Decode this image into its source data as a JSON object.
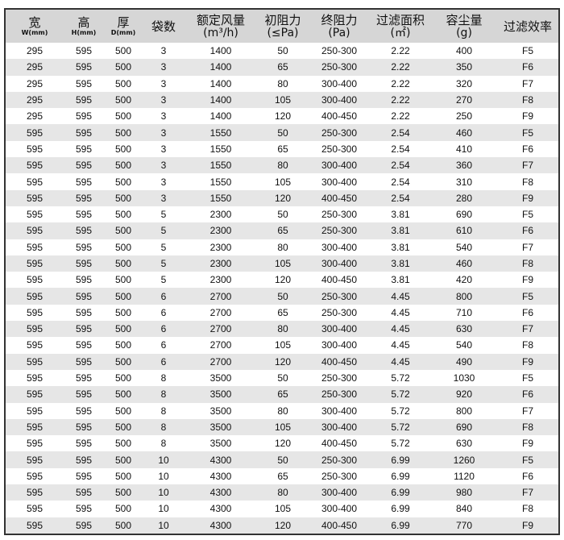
{
  "headers": [
    {
      "main": "宽",
      "sub": "W(mm)"
    },
    {
      "main": "高",
      "sub": "H(mm)"
    },
    {
      "main": "厚",
      "sub": "D(mm)"
    },
    {
      "main": "袋数"
    },
    {
      "main": "额定风量",
      "unit": "(m³/h)"
    },
    {
      "main": "初阻力",
      "unit": "(≤Pa)"
    },
    {
      "main": "终阻力",
      "unit": "(Pa)"
    },
    {
      "main": "过滤面积",
      "unit": "(㎡)"
    },
    {
      "main": "容尘量",
      "unit": "(g)"
    },
    {
      "main": "过滤效率"
    }
  ],
  "rows": [
    [
      "295",
      "595",
      "500",
      "3",
      "1400",
      "50",
      "250-300",
      "2.22",
      "400",
      "F5"
    ],
    [
      "295",
      "595",
      "500",
      "3",
      "1400",
      "65",
      "250-300",
      "2.22",
      "350",
      "F6"
    ],
    [
      "295",
      "595",
      "500",
      "3",
      "1400",
      "80",
      "300-400",
      "2.22",
      "320",
      "F7"
    ],
    [
      "295",
      "595",
      "500",
      "3",
      "1400",
      "105",
      "300-400",
      "2.22",
      "270",
      "F8"
    ],
    [
      "295",
      "595",
      "500",
      "3",
      "1400",
      "120",
      "400-450",
      "2.22",
      "250",
      "F9"
    ],
    [
      "595",
      "595",
      "500",
      "3",
      "1550",
      "50",
      "250-300",
      "2.54",
      "460",
      "F5"
    ],
    [
      "595",
      "595",
      "500",
      "3",
      "1550",
      "65",
      "250-300",
      "2.54",
      "410",
      "F6"
    ],
    [
      "595",
      "595",
      "500",
      "3",
      "1550",
      "80",
      "300-400",
      "2.54",
      "360",
      "F7"
    ],
    [
      "595",
      "595",
      "500",
      "3",
      "1550",
      "105",
      "300-400",
      "2.54",
      "310",
      "F8"
    ],
    [
      "595",
      "595",
      "500",
      "3",
      "1550",
      "120",
      "400-450",
      "2.54",
      "280",
      "F9"
    ],
    [
      "595",
      "595",
      "500",
      "5",
      "2300",
      "50",
      "250-300",
      "3.81",
      "690",
      "F5"
    ],
    [
      "595",
      "595",
      "500",
      "5",
      "2300",
      "65",
      "250-300",
      "3.81",
      "610",
      "F6"
    ],
    [
      "595",
      "595",
      "500",
      "5",
      "2300",
      "80",
      "300-400",
      "3.81",
      "540",
      "F7"
    ],
    [
      "595",
      "595",
      "500",
      "5",
      "2300",
      "105",
      "300-400",
      "3.81",
      "460",
      "F8"
    ],
    [
      "595",
      "595",
      "500",
      "5",
      "2300",
      "120",
      "400-450",
      "3.81",
      "420",
      "F9"
    ],
    [
      "595",
      "595",
      "500",
      "6",
      "2700",
      "50",
      "250-300",
      "4.45",
      "800",
      "F5"
    ],
    [
      "595",
      "595",
      "500",
      "6",
      "2700",
      "65",
      "250-300",
      "4.45",
      "710",
      "F6"
    ],
    [
      "595",
      "595",
      "500",
      "6",
      "2700",
      "80",
      "300-400",
      "4.45",
      "630",
      "F7"
    ],
    [
      "595",
      "595",
      "500",
      "6",
      "2700",
      "105",
      "300-400",
      "4.45",
      "540",
      "F8"
    ],
    [
      "595",
      "595",
      "500",
      "6",
      "2700",
      "120",
      "400-450",
      "4.45",
      "490",
      "F9"
    ],
    [
      "595",
      "595",
      "500",
      "8",
      "3500",
      "50",
      "250-300",
      "5.72",
      "1030",
      "F5"
    ],
    [
      "595",
      "595",
      "500",
      "8",
      "3500",
      "65",
      "250-300",
      "5.72",
      "920",
      "F6"
    ],
    [
      "595",
      "595",
      "500",
      "8",
      "3500",
      "80",
      "300-400",
      "5.72",
      "800",
      "F7"
    ],
    [
      "595",
      "595",
      "500",
      "8",
      "3500",
      "105",
      "300-400",
      "5.72",
      "690",
      "F8"
    ],
    [
      "595",
      "595",
      "500",
      "8",
      "3500",
      "120",
      "400-450",
      "5.72",
      "630",
      "F9"
    ],
    [
      "595",
      "595",
      "500",
      "10",
      "4300",
      "50",
      "250-300",
      "6.99",
      "1260",
      "F5"
    ],
    [
      "595",
      "595",
      "500",
      "10",
      "4300",
      "65",
      "250-300",
      "6.99",
      "1120",
      "F6"
    ],
    [
      "595",
      "595",
      "500",
      "10",
      "4300",
      "80",
      "300-400",
      "6.99",
      "980",
      "F7"
    ],
    [
      "595",
      "595",
      "500",
      "10",
      "4300",
      "105",
      "300-400",
      "6.99",
      "840",
      "F8"
    ],
    [
      "595",
      "595",
      "500",
      "10",
      "4300",
      "120",
      "400-450",
      "6.99",
      "770",
      "F9"
    ]
  ]
}
